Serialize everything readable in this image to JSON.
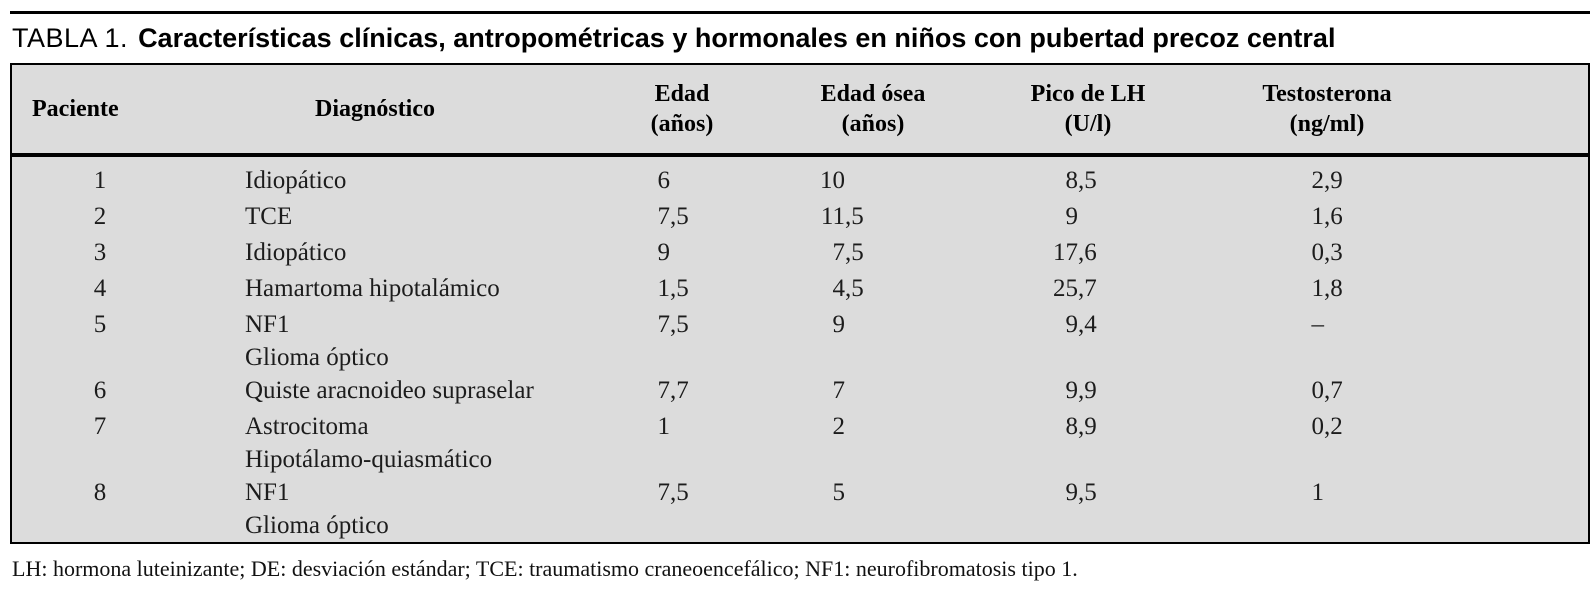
{
  "title": {
    "label": "TABLA 1.",
    "text": "Características clínicas, antropométricas y hormonales en niños con pubertad precoz central"
  },
  "table": {
    "columns": [
      {
        "key": "paciente",
        "label": "Paciente",
        "sublabel": ""
      },
      {
        "key": "diagnostico",
        "label": "Diagnóstico",
        "sublabel": ""
      },
      {
        "key": "edad",
        "label": "Edad",
        "sublabel": "(años)"
      },
      {
        "key": "edad_osea",
        "label": "Edad ósea",
        "sublabel": "(años)"
      },
      {
        "key": "pico_lh",
        "label": "Pico de LH",
        "sublabel": "(U/l)"
      },
      {
        "key": "testosterona",
        "label": "Testosterona",
        "sublabel": "(ng/ml)"
      }
    ],
    "rows": [
      {
        "paciente": "1",
        "diagnostico": [
          "Idiopático"
        ],
        "edad": "6",
        "edad_osea": "10",
        "pico_lh": "8,5",
        "testosterona": "2,9"
      },
      {
        "paciente": "2",
        "diagnostico": [
          "TCE"
        ],
        "edad": "7,5",
        "edad_osea": "11,5",
        "pico_lh": "9",
        "testosterona": "1,6"
      },
      {
        "paciente": "3",
        "diagnostico": [
          "Idiopático"
        ],
        "edad": "9",
        "edad_osea": "7,5",
        "pico_lh": "17,6",
        "testosterona": "0,3"
      },
      {
        "paciente": "4",
        "diagnostico": [
          "Hamartoma hipotalámico"
        ],
        "edad": "1,5",
        "edad_osea": "4,5",
        "pico_lh": "25,7",
        "testosterona": "1,8"
      },
      {
        "paciente": "5",
        "diagnostico": [
          "NF1",
          "Glioma óptico"
        ],
        "edad": "7,5",
        "edad_osea": "9",
        "pico_lh": "9,4",
        "testosterona": "–"
      },
      {
        "paciente": "6",
        "diagnostico": [
          "Quiste aracnoideo supraselar"
        ],
        "edad": "7,7",
        "edad_osea": "7",
        "pico_lh": "9,9",
        "testosterona": "0,7"
      },
      {
        "paciente": "7",
        "diagnostico": [
          "Astrocitoma",
          "Hipotálamo-quiasmático"
        ],
        "edad": "1",
        "edad_osea": "2",
        "pico_lh": "8,9",
        "testosterona": "0,2"
      },
      {
        "paciente": "8",
        "diagnostico": [
          "NF1",
          "Glioma óptico"
        ],
        "edad": "7,5",
        "edad_osea": "5",
        "pico_lh": "9,5",
        "testosterona": "1"
      }
    ]
  },
  "footnote": "LH: hormona luteinizante; DE: desviación estándar; TCE: traumatismo craneoencefálico; NF1: neurofibromatosis tipo 1.",
  "colors": {
    "page_bg": "#ffffff",
    "table_bg": "#dcdcdc",
    "border": "#000000",
    "text": "#1c1c1c"
  }
}
